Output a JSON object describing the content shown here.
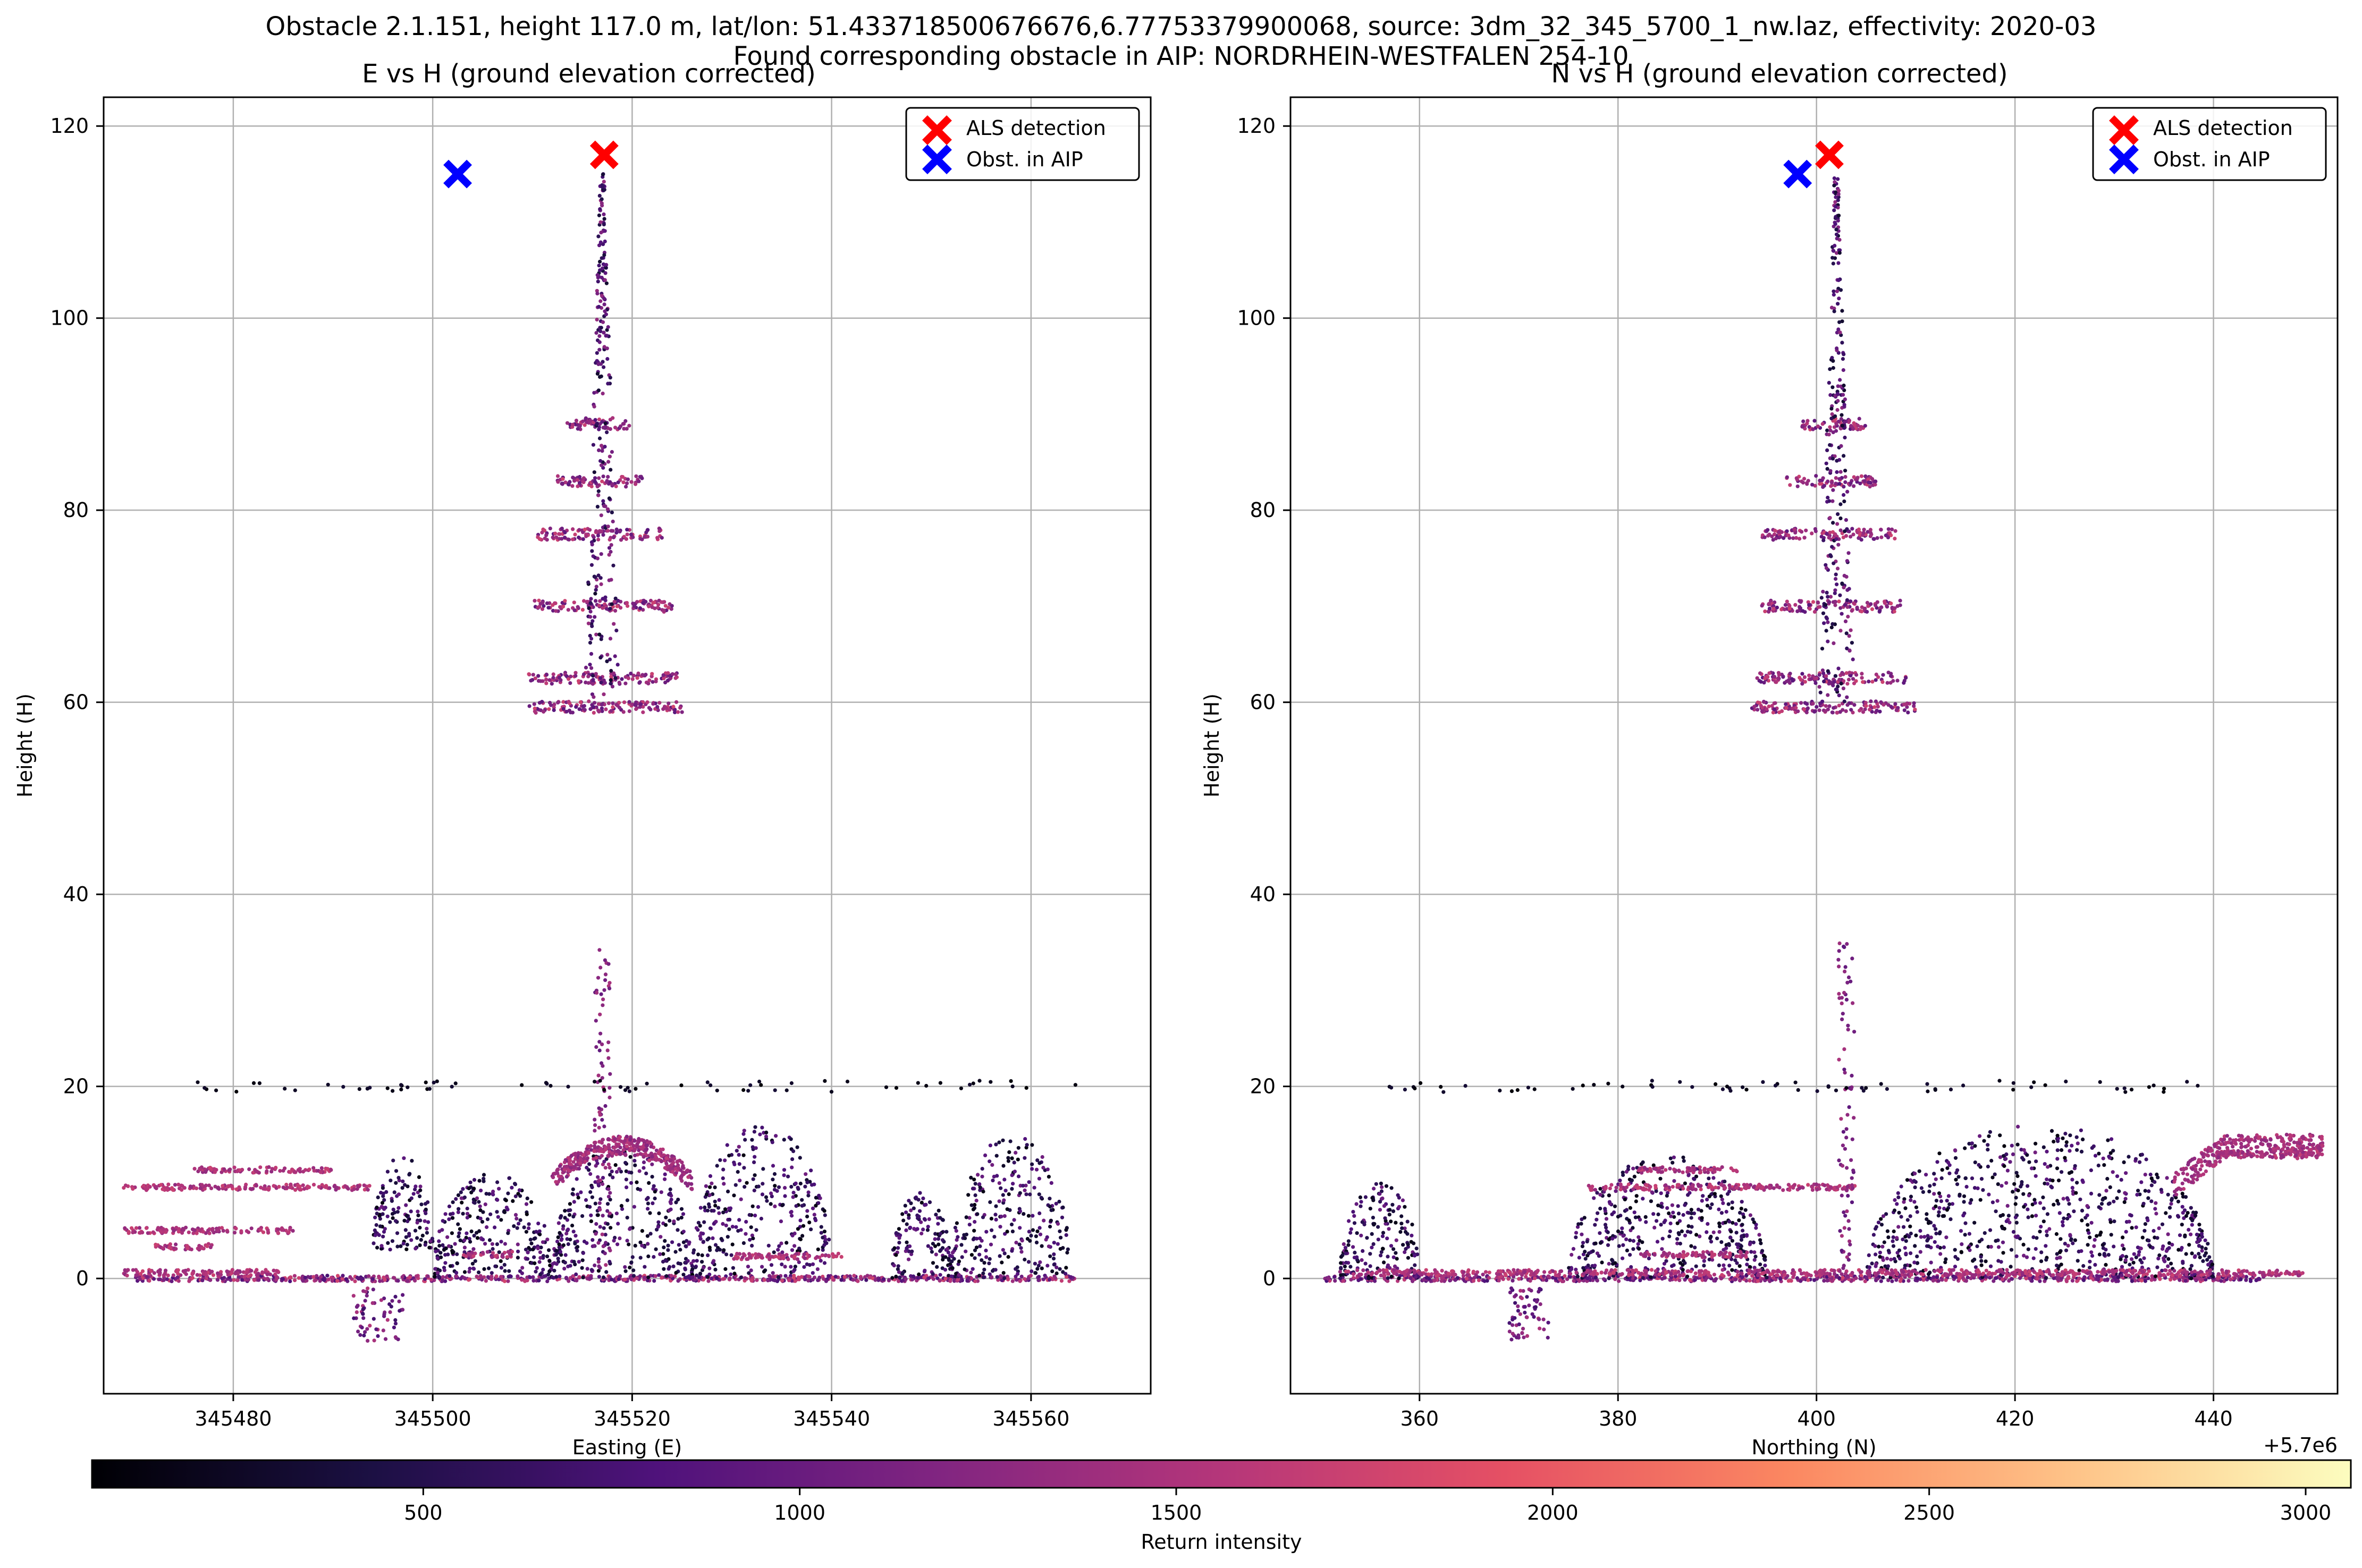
{
  "suptitle": {
    "line1": "Obstacle 2.1.151, height 117.0 m, lat/lon: 51.433718500676676,6.77753379900068, source: 3dm_32_345_5700_1_nw.laz, effectivity: 2020-03",
    "line2": "Found corresponding obstacle in AIP: NORDRHEIN-WESTFALEN 254-10"
  },
  "colorbar": {
    "label": "Return intensity",
    "colormap": "magma",
    "range": [
      60,
      3060
    ],
    "ticks": [
      500,
      1000,
      1500,
      2000,
      2500,
      3000
    ]
  },
  "chart_data": [
    {
      "type": "scatter",
      "title": "E vs H (ground elevation corrected)",
      "xlabel": "Easting (E)",
      "ylabel": "Height (H)",
      "xlim": [
        345467,
        345572
      ],
      "ylim": [
        -12,
        123
      ],
      "xticks": [
        345480,
        345500,
        345520,
        345540,
        345560
      ],
      "yticks": [
        0,
        20,
        40,
        60,
        80,
        100,
        120
      ],
      "offset_text": "",
      "grid": true,
      "legend_position": "top-right",
      "legend": [
        {
          "label": "ALS detection",
          "marker": "x",
          "color": "#ff0000"
        },
        {
          "label": "Obst. in AIP",
          "marker": "x",
          "color": "#0000ff"
        }
      ],
      "markers": {
        "als_detection": {
          "x": 345517.2,
          "y": 117.0
        },
        "obst_in_aip": {
          "x": 345502.5,
          "y": 115.0
        }
      },
      "point_cloud": {
        "tower_axis_x": 345517,
        "mast_top": 115,
        "platforms": [
          {
            "y": 59.5,
            "x": [
              345509.5,
              345525
            ]
          },
          {
            "y": 62.5,
            "x": [
              345509.5,
              345524.5
            ]
          },
          {
            "y": 70,
            "x": [
              345510,
              345524
            ]
          },
          {
            "y": 77.5,
            "x": [
              345510.5,
              345523
            ]
          },
          {
            "y": 83,
            "x": [
              345512.5,
              345521
            ]
          },
          {
            "y": 89,
            "x": [
              345513.5,
              345520
            ]
          }
        ],
        "ground_level": 0,
        "vegetation": [
          {
            "x": [
              345494,
              345500
            ],
            "y": [
              3,
              13
            ]
          },
          {
            "x": [
              345500,
              345512
            ],
            "y": [
              0,
              11
            ]
          },
          {
            "x": [
              345512,
              345526
            ],
            "y": [
              0,
              14
            ]
          },
          {
            "x": [
              345526,
              345540
            ],
            "y": [
              0,
              16
            ]
          },
          {
            "x": [
              345546,
              345552
            ],
            "y": [
              0,
              9
            ]
          },
          {
            "x": [
              345552,
              345564
            ],
            "y": [
              0,
              15
            ]
          }
        ],
        "roof_lines": [
          {
            "y": 9.5,
            "x": [
              345469,
              345494
            ]
          },
          {
            "y": 11.3,
            "x": [
              345476,
              345490
            ]
          },
          {
            "y": 5,
            "x": [
              345469,
              345486
            ]
          },
          {
            "y": 3.3,
            "x": [
              345472,
              345478
            ]
          },
          {
            "y": 0.6,
            "x": [
              345469,
              345485
            ]
          },
          {
            "y": 2.5,
            "x": [
              345503,
              345508
            ]
          },
          {
            "y": 2.3,
            "x": [
              345530,
              345541
            ]
          }
        ],
        "pit": {
          "x": [
            345492,
            345497
          ],
          "y": [
            -6.5,
            -1
          ]
        },
        "pole": {
          "x": 345517,
          "y": [
            0,
            35
          ]
        },
        "upper_hull": {
          "x": [
            345512,
            345526
          ],
          "y": 14.8
        },
        "wires_y": 20
      }
    },
    {
      "type": "scatter",
      "title": "N vs H (ground elevation corrected)",
      "xlabel": "Northing (N)",
      "ylabel": "Height (H)",
      "xlim": [
        347,
        452.5
      ],
      "ylim": [
        -12,
        123
      ],
      "xticks": [
        360,
        380,
        400,
        420,
        440
      ],
      "yticks": [
        0,
        20,
        40,
        60,
        80,
        100,
        120
      ],
      "offset_text": "+5.7e6",
      "grid": true,
      "legend_position": "top-right",
      "legend": [
        {
          "label": "ALS detection",
          "marker": "x",
          "color": "#ff0000"
        },
        {
          "label": "Obst. in AIP",
          "marker": "x",
          "color": "#0000ff"
        }
      ],
      "markers": {
        "als_detection": {
          "x": 401.3,
          "y": 117.0
        },
        "obst_in_aip": {
          "x": 398.1,
          "y": 115.0
        }
      },
      "point_cloud": {
        "tower_axis_x": 402,
        "mast_top": 115,
        "platforms": [
          {
            "y": 59.5,
            "x": [
              393.5,
              410
            ]
          },
          {
            "y": 62.5,
            "x": [
              394,
              409
            ]
          },
          {
            "y": 70,
            "x": [
              394.5,
              408.5
            ]
          },
          {
            "y": 77.5,
            "x": [
              394.5,
              408
            ]
          },
          {
            "y": 83,
            "x": [
              397,
              406
            ]
          },
          {
            "y": 89,
            "x": [
              398.5,
              405
            ]
          }
        ],
        "ground_level": 0,
        "vegetation": [
          {
            "x": [
              352,
              360
            ],
            "y": [
              0,
              10
            ]
          },
          {
            "x": [
              375,
              395
            ],
            "y": [
              0,
              13
            ]
          },
          {
            "x": [
              405,
              440
            ],
            "y": [
              0,
              16
            ]
          }
        ],
        "roof_lines": [
          {
            "y": 9.5,
            "x": [
              377,
              404
            ]
          },
          {
            "y": 11.3,
            "x": [
              382,
              392
            ]
          },
          {
            "y": 13,
            "x": [
              440,
              451
            ]
          },
          {
            "y": 2.5,
            "x": [
              382,
              393
            ]
          },
          {
            "y": 0.6,
            "x": [
              352,
              449
            ]
          }
        ],
        "pit": {
          "x": [
            369,
            373
          ],
          "y": [
            -6.5,
            -1
          ]
        },
        "pole": {
          "x": 403,
          "y": [
            0,
            35
          ]
        },
        "roof_ramp": {
          "x": [
            436,
            451
          ],
          "y": [
            11,
            15
          ]
        },
        "wires_y": 20
      }
    }
  ]
}
